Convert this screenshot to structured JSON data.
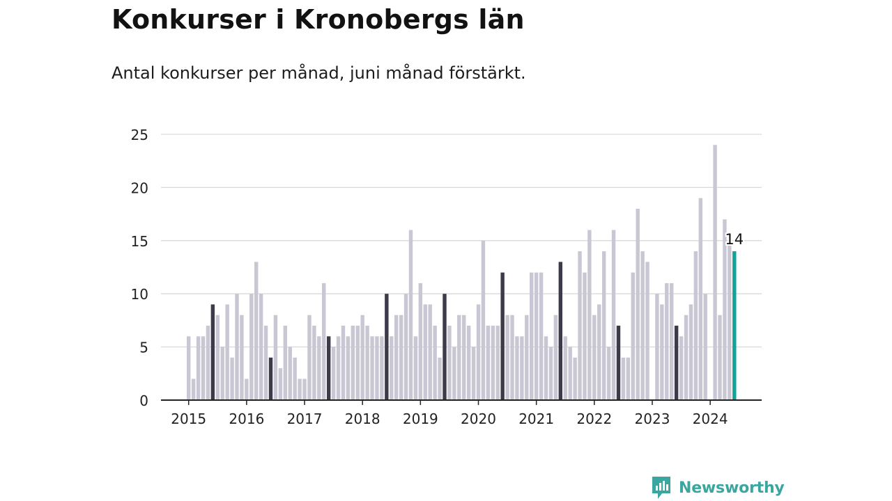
{
  "header": {
    "title": "Konkurser i Kronobergs län",
    "subtitle": "Antal konkurser per månad, juni månad förstärkt."
  },
  "brand": {
    "name": "Newsworthy",
    "color": "#3aa6a0",
    "icon": "newsworthy-logo-icon"
  },
  "colors": {
    "bar_default": "#c8c7d3",
    "bar_june": "#3d3b4a",
    "bar_latest": "#12a39a",
    "grid": "#d9d9d9",
    "axis": "#222222"
  },
  "chart_data": {
    "type": "bar",
    "title": "Konkurser i Kronobergs län",
    "subtitle": "Antal konkurser per månad, juni månad förstärkt.",
    "xlabel": "",
    "ylabel": "",
    "ylim": [
      0,
      25
    ],
    "yticks": [
      0,
      5,
      10,
      15,
      20,
      25
    ],
    "grid": true,
    "start_month": "2015-01",
    "xtick_labels": [
      "2015",
      "2016",
      "2017",
      "2018",
      "2019",
      "2020",
      "2021",
      "2022",
      "2023",
      "2024"
    ],
    "highlight": "June of each year (dark), latest month June 2024 (teal)",
    "annotation": {
      "month": "2024-06",
      "text": "14"
    },
    "values": [
      6,
      2,
      6,
      6,
      7,
      9,
      8,
      5,
      9,
      4,
      10,
      8,
      2,
      10,
      13,
      10,
      7,
      4,
      8,
      3,
      7,
      5,
      4,
      2,
      2,
      8,
      7,
      6,
      11,
      6,
      5,
      6,
      7,
      6,
      7,
      7,
      8,
      7,
      6,
      6,
      6,
      10,
      6,
      8,
      8,
      10,
      16,
      6,
      11,
      9,
      9,
      7,
      4,
      10,
      7,
      5,
      8,
      8,
      7,
      5,
      9,
      15,
      7,
      7,
      7,
      12,
      8,
      8,
      6,
      6,
      8,
      12,
      12,
      12,
      6,
      5,
      8,
      13,
      6,
      5,
      4,
      14,
      12,
      16,
      8,
      9,
      14,
      5,
      16,
      7,
      4,
      4,
      12,
      18,
      14,
      13,
      0,
      10,
      9,
      11,
      11,
      7,
      6,
      8,
      9,
      14,
      19,
      10,
      0,
      24,
      8,
      17,
      15,
      14
    ]
  }
}
